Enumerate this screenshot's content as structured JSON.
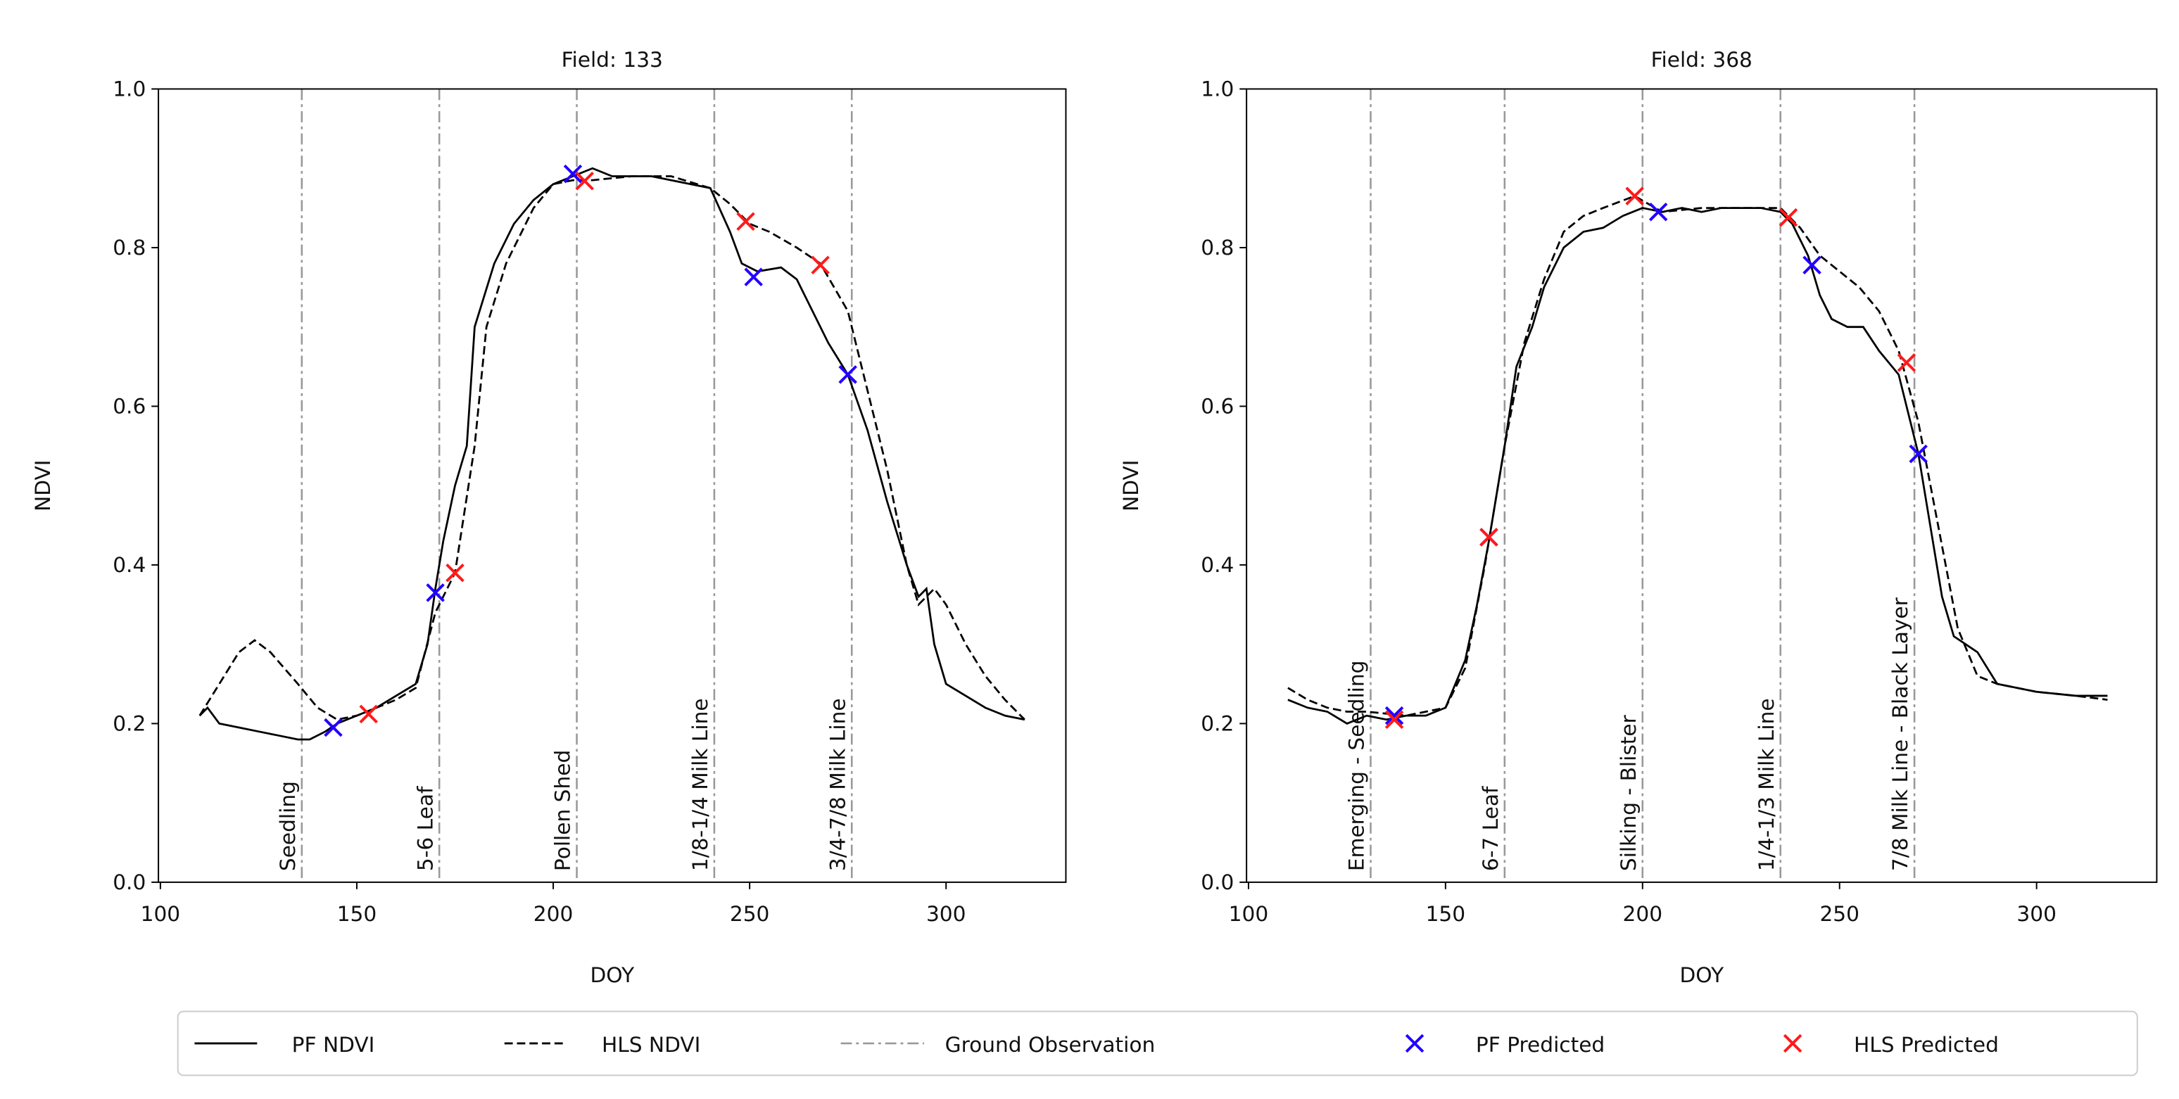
{
  "chart_data": [
    {
      "type": "line",
      "title": "Field: 133",
      "x_label": "DOY",
      "y_label": "NDVI",
      "xlim": [
        99.5,
        330.5
      ],
      "ylim": [
        0,
        1
      ],
      "xticks": [
        100,
        150,
        200,
        250,
        300
      ],
      "yticks": [
        {
          "value": 0,
          "label": "0.0"
        },
        {
          "value": 0.2,
          "label": "0.2"
        },
        {
          "value": 0.4,
          "label": "0.4"
        },
        {
          "value": 0.6,
          "label": "0.6"
        },
        {
          "value": 0.8,
          "label": "0.8"
        },
        {
          "value": 1,
          "label": "1.0"
        }
      ],
      "series": [
        {
          "name": "PF NDVI",
          "color": "#000000",
          "dash": "solid",
          "x": [
            110,
            112,
            115,
            120,
            125,
            130,
            135,
            138,
            142,
            145,
            150,
            155,
            160,
            165,
            168,
            170,
            172,
            175,
            178,
            180,
            185,
            190,
            195,
            200,
            205,
            210,
            215,
            220,
            225,
            230,
            235,
            240,
            245,
            248,
            252,
            258,
            262,
            266,
            270,
            275,
            280,
            285,
            290,
            293,
            295,
            297,
            300,
            305,
            310,
            315,
            320
          ],
          "values": [
            0.21,
            0.22,
            0.2,
            0.195,
            0.19,
            0.185,
            0.18,
            0.18,
            0.19,
            0.2,
            0.21,
            0.22,
            0.235,
            0.25,
            0.3,
            0.37,
            0.43,
            0.5,
            0.55,
            0.7,
            0.78,
            0.83,
            0.86,
            0.88,
            0.89,
            0.9,
            0.89,
            0.89,
            0.89,
            0.885,
            0.88,
            0.875,
            0.82,
            0.78,
            0.77,
            0.775,
            0.76,
            0.72,
            0.68,
            0.64,
            0.57,
            0.48,
            0.4,
            0.36,
            0.37,
            0.3,
            0.25,
            0.235,
            0.22,
            0.21,
            0.205
          ]
        },
        {
          "name": "HLS NDVI",
          "color": "#000000",
          "dash": "dashed",
          "x": [
            110,
            115,
            120,
            124,
            128,
            135,
            140,
            145,
            150,
            155,
            160,
            165,
            170,
            175,
            180,
            183,
            188,
            195,
            200,
            205,
            210,
            220,
            230,
            240,
            245,
            250,
            255,
            262,
            268,
            275,
            280,
            285,
            290,
            293,
            297,
            300,
            305,
            310,
            315,
            320
          ],
          "values": [
            0.21,
            0.25,
            0.29,
            0.305,
            0.29,
            0.25,
            0.22,
            0.205,
            0.21,
            0.22,
            0.23,
            0.245,
            0.34,
            0.39,
            0.55,
            0.7,
            0.78,
            0.85,
            0.88,
            0.885,
            0.885,
            0.89,
            0.89,
            0.875,
            0.855,
            0.83,
            0.82,
            0.8,
            0.78,
            0.72,
            0.62,
            0.52,
            0.4,
            0.35,
            0.37,
            0.35,
            0.3,
            0.26,
            0.23,
            0.205
          ]
        }
      ],
      "ground_observation": {
        "name": "Ground Observation",
        "color": "#999999",
        "x": [
          136,
          171,
          206,
          241,
          276
        ],
        "labels": [
          "Seedling",
          "5-6 Leaf",
          "Pollen Shed",
          "1/8-1/4 Milk Line",
          "3/4-7/8 Milk Line"
        ]
      },
      "predictions": [
        {
          "name": "PF Predicted",
          "color": "#2200ff",
          "x": [
            144,
            170,
            205,
            251,
            275
          ],
          "values": [
            0.195,
            0.365,
            0.893,
            0.763,
            0.64
          ]
        },
        {
          "name": "HLS Predicted",
          "color": "#ff1a1a",
          "x": [
            153,
            175,
            208,
            249,
            268
          ],
          "values": [
            0.212,
            0.39,
            0.884,
            0.833,
            0.778
          ]
        }
      ]
    },
    {
      "type": "line",
      "title": "Field: 368",
      "x_label": "DOY",
      "y_label": "NDVI",
      "xlim": [
        99.5,
        330.5
      ],
      "ylim": [
        0,
        1
      ],
      "xticks": [
        100,
        150,
        200,
        250,
        300
      ],
      "yticks": [
        {
          "value": 0,
          "label": "0.0"
        },
        {
          "value": 0.2,
          "label": "0.2"
        },
        {
          "value": 0.4,
          "label": "0.4"
        },
        {
          "value": 0.6,
          "label": "0.6"
        },
        {
          "value": 0.8,
          "label": "0.8"
        },
        {
          "value": 1,
          "label": "1.0"
        }
      ],
      "series": [
        {
          "color": "#000000",
          "dash": "solid",
          "x": [
            110,
            115,
            120,
            125,
            130,
            135,
            140,
            145,
            150,
            155,
            158,
            161,
            165,
            168,
            172,
            175,
            180,
            185,
            190,
            195,
            200,
            205,
            210,
            215,
            220,
            230,
            235,
            238,
            242,
            245,
            248,
            252,
            256,
            260,
            265,
            270,
            273,
            276,
            279,
            282,
            285,
            290,
            300,
            310,
            315,
            318
          ],
          "values": [
            0.23,
            0.22,
            0.215,
            0.2,
            0.21,
            0.205,
            0.21,
            0.21,
            0.22,
            0.28,
            0.35,
            0.43,
            0.55,
            0.65,
            0.7,
            0.75,
            0.8,
            0.82,
            0.825,
            0.84,
            0.85,
            0.845,
            0.85,
            0.845,
            0.85,
            0.85,
            0.845,
            0.83,
            0.79,
            0.74,
            0.71,
            0.7,
            0.7,
            0.67,
            0.64,
            0.54,
            0.45,
            0.36,
            0.31,
            0.3,
            0.29,
            0.25,
            0.24,
            0.235,
            0.235,
            0.235
          ]
        },
        {
          "color": "#000000",
          "dash": "dashed",
          "x": [
            110,
            115,
            120,
            125,
            130,
            140,
            150,
            155,
            160,
            165,
            170,
            175,
            180,
            185,
            190,
            198,
            205,
            215,
            225,
            235,
            240,
            245,
            250,
            255,
            260,
            265,
            270,
            275,
            280,
            285,
            290,
            300,
            310,
            318
          ],
          "values": [
            0.245,
            0.23,
            0.22,
            0.215,
            0.215,
            0.21,
            0.22,
            0.27,
            0.4,
            0.55,
            0.68,
            0.76,
            0.82,
            0.84,
            0.85,
            0.865,
            0.845,
            0.85,
            0.85,
            0.85,
            0.825,
            0.79,
            0.77,
            0.75,
            0.72,
            0.67,
            0.58,
            0.45,
            0.32,
            0.26,
            0.25,
            0.24,
            0.235,
            0.23
          ]
        }
      ],
      "ground_observation": {
        "color": "#999999",
        "x": [
          131,
          165,
          200,
          235,
          269
        ],
        "labels": [
          "Emerging - Seedling",
          "6-7 Leaf",
          "Silking - Blister",
          "1/4-1/3 Milk Line",
          "7/8 Milk Line - Black Layer"
        ]
      },
      "predictions": [
        {
          "color": "#2200ff",
          "x": [
            137,
            161,
            204,
            243,
            270
          ],
          "values": [
            0.21,
            0.435,
            0.845,
            0.778,
            0.54
          ]
        },
        {
          "color": "#ff1a1a",
          "x": [
            137,
            161,
            198,
            237,
            267
          ],
          "values": [
            0.205,
            0.435,
            0.865,
            0.838,
            0.655
          ]
        }
      ]
    }
  ]
}
